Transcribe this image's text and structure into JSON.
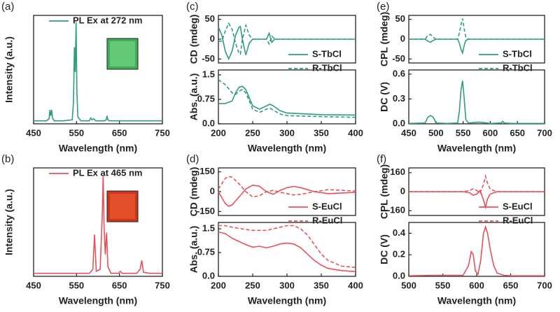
{
  "chart_data": [
    {
      "type": "line",
      "panel_label": "(a)",
      "y_label": "Intensity (a.u.)",
      "x_label": "Wavelength (nm)",
      "xlim": [
        450,
        750
      ],
      "xticks": [
        450,
        550,
        650,
        750
      ],
      "ylim": [
        -0.02,
        1.07
      ],
      "x": [
        450,
        480,
        486,
        488,
        490,
        492,
        494,
        498,
        520,
        540,
        543,
        545,
        547,
        549,
        551,
        553,
        560,
        580,
        583,
        586,
        590,
        595,
        615,
        619,
        621,
        623,
        626,
        650,
        700,
        750
      ],
      "series": [
        {
          "name": "PL Ex at 272 nm",
          "color": "#2e9e7a",
          "values": [
            0.01,
            0.01,
            0.03,
            0.12,
            0.06,
            0.12,
            0.04,
            0.01,
            0.01,
            0.02,
            0.2,
            0.75,
            0.5,
            1.0,
            0.3,
            0.05,
            0.01,
            0.01,
            0.04,
            0.02,
            0.03,
            0.01,
            0.01,
            0.02,
            0.06,
            0.02,
            0.01,
            0.01,
            0.01,
            0.01
          ]
        }
      ]
    },
    {
      "type": "line",
      "panel_label": "(b)",
      "y_label": "Intensity (a.u.)",
      "x_label": "Wavelength (nm)",
      "xlim": [
        450,
        750
      ],
      "xticks": [
        450,
        550,
        650,
        750
      ],
      "ylim": [
        -0.02,
        1.07
      ],
      "x": [
        450,
        550,
        580,
        588,
        592,
        596,
        605,
        610,
        612,
        614,
        617,
        620,
        623,
        630,
        648,
        652,
        656,
        690,
        698,
        702,
        706,
        720,
        750
      ],
      "series": [
        {
          "name": "PL Ex at 465 nm",
          "color": "#e8505b",
          "values": [
            0.01,
            0.01,
            0.01,
            0.05,
            0.4,
            0.03,
            0.05,
            0.6,
            1.0,
            0.5,
            0.2,
            0.42,
            0.08,
            0.01,
            0.01,
            0.03,
            0.01,
            0.01,
            0.05,
            0.14,
            0.02,
            0.01,
            0.01
          ]
        }
      ]
    },
    {
      "type": "line",
      "panel_label": "(c)",
      "y_label": "CD (mdeg)",
      "xlim": [
        200,
        400
      ],
      "ylim": [
        -60,
        60
      ],
      "yticks": [
        -50,
        0,
        50
      ],
      "x": [
        200,
        205,
        210,
        215,
        220,
        225,
        230,
        232,
        235,
        240,
        245,
        250,
        270,
        274,
        278,
        282,
        290,
        400
      ],
      "series": [
        {
          "name": "S-TbCl",
          "color": "#2e9e7a",
          "dash": false,
          "values": [
            30,
            10,
            -30,
            -50,
            -30,
            10,
            30,
            32,
            0,
            -40,
            -10,
            0,
            0,
            15,
            -8,
            0,
            0,
            0
          ]
        },
        {
          "name": "R-TbCl",
          "color": "#2e9e7a",
          "dash": true,
          "values": [
            -5,
            -5,
            20,
            40,
            25,
            -10,
            -35,
            -38,
            0,
            35,
            10,
            0,
            0,
            -12,
            8,
            0,
            0,
            0
          ]
        }
      ]
    },
    {
      "type": "line",
      "y_label": "Abs. (a.u.)",
      "x_label": "Wavelength (nm)",
      "xlim": [
        200,
        400
      ],
      "xticks": [
        200,
        250,
        300,
        350,
        400
      ],
      "ylim": [
        0,
        1.65
      ],
      "yticks": [
        {
          "value": 0,
          "label": "0.0"
        },
        0.75,
        1.5
      ],
      "x": [
        200,
        210,
        220,
        225,
        230,
        235,
        240,
        245,
        250,
        260,
        270,
        275,
        280,
        290,
        300,
        350,
        400
      ],
      "series": [
        {
          "color": "#2e9e7a",
          "dash": false,
          "values": [
            0.62,
            0.62,
            0.7,
            0.95,
            1.12,
            1.15,
            1.05,
            0.8,
            0.55,
            0.45,
            0.55,
            0.6,
            0.55,
            0.4,
            0.33,
            0.28,
            0.27
          ]
        },
        {
          "color": "#2e9e7a",
          "dash": true,
          "values": [
            1.35,
            1.2,
            0.95,
            0.9,
            1.0,
            1.05,
            0.95,
            0.7,
            0.45,
            0.35,
            0.45,
            0.48,
            0.42,
            0.3,
            0.25,
            0.22,
            0.2
          ]
        }
      ]
    },
    {
      "type": "line",
      "panel_label": "(d)",
      "y_label": "CD (mdeg)",
      "xlim": [
        200,
        400
      ],
      "ylim": [
        -180,
        180
      ],
      "yticks": [
        -150,
        0,
        150
      ],
      "x": [
        200,
        210,
        215,
        220,
        230,
        240,
        250,
        260,
        270,
        280,
        290,
        300,
        310,
        320,
        340,
        360,
        380,
        400
      ],
      "series": [
        {
          "name": "S-EuCl",
          "color": "#e8505b",
          "dash": false,
          "values": [
            0,
            -90,
            -110,
            -100,
            -40,
            20,
            50,
            40,
            0,
            -20,
            10,
            30,
            40,
            30,
            0,
            -15,
            -10,
            -5
          ]
        },
        {
          "name": "R-EuCl",
          "color": "#e8505b",
          "dash": true,
          "values": [
            20,
            100,
            115,
            110,
            60,
            0,
            -40,
            -30,
            0,
            10,
            -5,
            -15,
            -25,
            -20,
            0,
            15,
            10,
            5
          ]
        }
      ]
    },
    {
      "type": "line",
      "y_label": "Abs. (a.u.)",
      "x_label": "Wavelength (nm)",
      "xlim": [
        200,
        400
      ],
      "xticks": [
        200,
        250,
        300,
        350,
        400
      ],
      "ylim": [
        0,
        1.7
      ],
      "yticks": [
        {
          "value": 0,
          "label": "0.0"
        },
        0.75,
        1.5
      ],
      "x": [
        200,
        210,
        220,
        240,
        250,
        260,
        270,
        280,
        290,
        300,
        310,
        320,
        330,
        340,
        350,
        360,
        380,
        400
      ],
      "series": [
        {
          "color": "#e8505b",
          "dash": false,
          "values": [
            1.4,
            1.35,
            1.2,
            1.0,
            0.92,
            0.95,
            0.9,
            0.95,
            1.02,
            1.05,
            1.02,
            0.9,
            0.7,
            0.5,
            0.35,
            0.25,
            0.18,
            0.15
          ]
        },
        {
          "color": "#e8505b",
          "dash": true,
          "values": [
            1.6,
            1.6,
            1.55,
            1.48,
            1.45,
            1.45,
            1.45,
            1.5,
            1.55,
            1.6,
            1.6,
            1.5,
            1.3,
            1.0,
            0.7,
            0.5,
            0.32,
            0.28
          ]
        }
      ]
    },
    {
      "type": "line",
      "panel_label": "(e)",
      "y_label": "CPL (mdeg)",
      "xlim": [
        450,
        700
      ],
      "ylim": [
        -60,
        60
      ],
      "yticks": [
        -50,
        0,
        50
      ],
      "x": [
        450,
        480,
        485,
        490,
        495,
        500,
        520,
        540,
        543,
        546,
        549,
        552,
        555,
        560,
        700
      ],
      "series": [
        {
          "name": "S-TbCl",
          "color": "#2e9e7a",
          "dash": false,
          "values": [
            0,
            0,
            -5,
            -8,
            -3,
            0,
            0,
            0,
            -10,
            -25,
            -35,
            -15,
            -3,
            0,
            0
          ]
        },
        {
          "name": "R-TbCl",
          "color": "#2e9e7a",
          "dash": true,
          "values": [
            0,
            0,
            10,
            12,
            5,
            0,
            0,
            0,
            15,
            35,
            52,
            25,
            5,
            0,
            0
          ]
        }
      ]
    },
    {
      "type": "line",
      "y_label": "DC (V)",
      "x_label": "Wavelength (nm)",
      "xlim": [
        450,
        700
      ],
      "xticks": [
        450,
        500,
        550,
        600,
        650,
        700
      ],
      "ylim": [
        0,
        0.65
      ],
      "yticks": [
        {
          "value": 0,
          "label": "0.0"
        },
        0.3,
        0.6
      ],
      "x": [
        450,
        480,
        485,
        490,
        495,
        500,
        520,
        540,
        543,
        546,
        549,
        552,
        555,
        560,
        580,
        600,
        620,
        623,
        626,
        640,
        700
      ],
      "series": [
        {
          "color": "#2e9e7a",
          "dash": false,
          "values": [
            0.005,
            0.01,
            0.08,
            0.1,
            0.08,
            0.01,
            0.005,
            0.01,
            0.15,
            0.4,
            0.52,
            0.3,
            0.05,
            0.01,
            0.02,
            0.005,
            0.01,
            0.03,
            0.01,
            0.005,
            0.005
          ]
        }
      ]
    },
    {
      "type": "line",
      "panel_label": "(f)",
      "y_label": "CPL (mdeg)",
      "xlim": [
        500,
        700
      ],
      "ylim": [
        -200,
        200
      ],
      "yticks": [
        -160,
        0,
        160
      ],
      "x": [
        500,
        580,
        585,
        590,
        595,
        600,
        605,
        610,
        613,
        616,
        620,
        625,
        630,
        640,
        700
      ],
      "series": [
        {
          "name": "S-EuCl",
          "color": "#e8505b",
          "dash": false,
          "values": [
            0,
            0,
            -5,
            -10,
            -30,
            -20,
            10,
            -70,
            -130,
            -60,
            -20,
            -10,
            0,
            0,
            0
          ]
        },
        {
          "name": "R-EuCl",
          "color": "#e8505b",
          "dash": true,
          "values": [
            0,
            0,
            5,
            10,
            25,
            10,
            -10,
            60,
            130,
            70,
            20,
            10,
            0,
            0,
            0
          ]
        }
      ]
    },
    {
      "type": "line",
      "y_label": "DC (V)",
      "x_label": "Wavelength (nm)",
      "xlim": [
        500,
        700
      ],
      "xticks": [
        500,
        550,
        600,
        650,
        700
      ],
      "ylim": [
        0,
        0.5
      ],
      "yticks": [
        {
          "value": 0,
          "label": "0.0"
        },
        0.2,
        0.4
      ],
      "x": [
        500,
        540,
        580,
        588,
        592,
        595,
        598,
        602,
        606,
        610,
        613,
        616,
        620,
        625,
        630,
        640,
        650,
        700
      ],
      "series": [
        {
          "color": "#e8505b",
          "dash": false,
          "values": [
            0.005,
            0.01,
            0.01,
            0.1,
            0.23,
            0.2,
            0.05,
            0.02,
            0.15,
            0.4,
            0.46,
            0.4,
            0.25,
            0.1,
            0.03,
            0.01,
            0.005,
            0.005
          ]
        }
      ]
    }
  ]
}
